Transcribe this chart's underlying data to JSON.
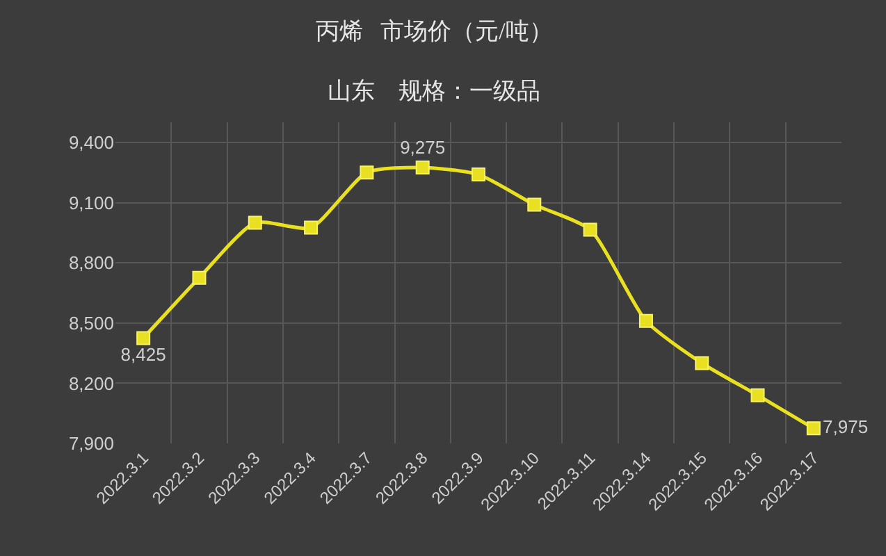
{
  "chart_data": {
    "type": "line",
    "title": "丙烯   市场价（元/吨）",
    "subtitle": "山东    规格：一级品",
    "categories": [
      "2022.3.1",
      "2022.3.2",
      "2022.3.3",
      "2022.3.4",
      "2022.3.7",
      "2022.3.8",
      "2022.3.9",
      "2022.3.10",
      "2022.3.11",
      "2022.3.14",
      "2022.3.15",
      "2022.3.16",
      "2022.3.17"
    ],
    "series": [
      {
        "color": "#e8e020",
        "values": [
          8425,
          8725,
          9000,
          8975,
          9250,
          9275,
          9240,
          9090,
          8965,
          8510,
          8300,
          8140,
          7975
        ],
        "value_labels": [
          "8,425",
          null,
          null,
          null,
          null,
          "9,275",
          null,
          null,
          null,
          null,
          null,
          null,
          "7,975"
        ]
      }
    ],
    "ylim": [
      7900,
      9500
    ],
    "yticks": [
      {
        "value": 7900,
        "label": "7,900"
      },
      {
        "value": 8200,
        "label": "8,200"
      },
      {
        "value": 8500,
        "label": "8,500"
      },
      {
        "value": 8800,
        "label": "8,800"
      },
      {
        "value": 9100,
        "label": "9,100"
      },
      {
        "value": 9400,
        "label": "9,400"
      }
    ],
    "grid": true,
    "marker": "square",
    "line_style": "solid"
  }
}
